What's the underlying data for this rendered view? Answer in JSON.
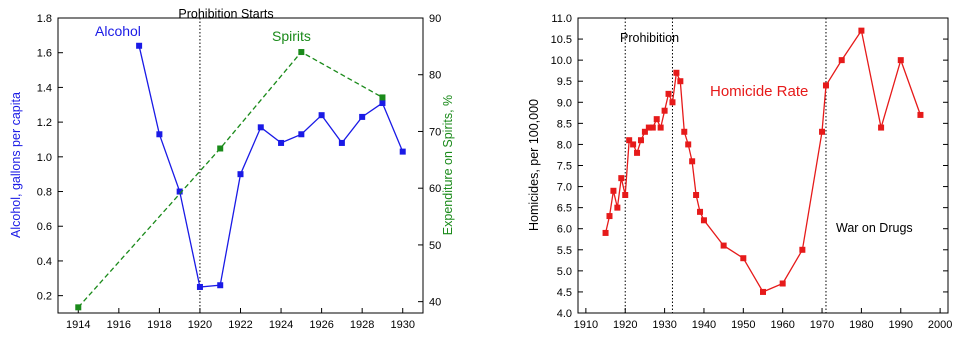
{
  "chart_data": [
    {
      "type": "line",
      "x_ticks": [
        "1914",
        "1916",
        "1918",
        "1920",
        "1922",
        "1924",
        "1926",
        "1928",
        "1930"
      ],
      "xlim": [
        1913,
        1931
      ],
      "series": [
        {
          "name": "Alcohol",
          "axis": "left",
          "color": "#1a1ae6",
          "dashed": false,
          "x": [
            1917,
            1918,
            1919,
            1920,
            1921,
            1922,
            1923,
            1924,
            1925,
            1926,
            1927,
            1928,
            1929,
            1930
          ],
          "y": [
            1.64,
            1.13,
            0.8,
            0.25,
            0.26,
            0.9,
            1.17,
            1.08,
            1.13,
            1.24,
            1.08,
            1.23,
            1.31,
            1.03
          ]
        },
        {
          "name": "Spirits",
          "axis": "right",
          "color": "#1a8a1a",
          "dashed": true,
          "x": [
            1914,
            1921,
            1925,
            1929
          ],
          "y": [
            39,
            67,
            84,
            76
          ]
        }
      ],
      "y_left": {
        "label": "Alcohol, gallons per capita",
        "lim": [
          0.1,
          1.8
        ],
        "ticks": [
          "0.2",
          "0.4",
          "0.6",
          "0.8",
          "1.0",
          "1.2",
          "1.4",
          "1.6",
          "1.8"
        ],
        "color": "#1a1ae6"
      },
      "y_right": {
        "label": "Expenditure on Spirits, %",
        "lim": [
          38,
          90
        ],
        "ticks": [
          "40",
          "50",
          "60",
          "70",
          "80",
          "90"
        ],
        "color": "#1a8a1a"
      },
      "annotations": [
        {
          "text": "Prohibition Starts",
          "at_x": 1920,
          "vline": true
        },
        {
          "text": "Alcohol",
          "color": "#1a1ae6"
        },
        {
          "text": "Spirits",
          "color": "#1a8a1a"
        }
      ],
      "grid": false
    },
    {
      "type": "line",
      "x_ticks": [
        "1910",
        "1920",
        "1930",
        "1940",
        "1950",
        "1960",
        "1970",
        "1980",
        "1990",
        "2000"
      ],
      "xlim": [
        1908,
        2002
      ],
      "series": [
        {
          "name": "Homicide Rate",
          "color": "#e61a1a",
          "dashed": false,
          "x": [
            1915,
            1916,
            1917,
            1918,
            1919,
            1920,
            1921,
            1922,
            1923,
            1924,
            1925,
            1926,
            1927,
            1928,
            1929,
            1930,
            1931,
            1932,
            1933,
            1934,
            1935,
            1936,
            1937,
            1938,
            1939,
            1940,
            1945,
            1950,
            1955,
            1960,
            1965,
            1970,
            1971,
            1975,
            1980,
            1985,
            1990,
            1995
          ],
          "y": [
            5.9,
            6.3,
            6.9,
            6.5,
            7.2,
            6.8,
            8.1,
            8.0,
            7.8,
            8.1,
            8.3,
            8.4,
            8.4,
            8.6,
            8.4,
            8.8,
            9.2,
            9.0,
            9.7,
            9.5,
            8.3,
            8.0,
            7.6,
            6.8,
            6.4,
            6.2,
            5.6,
            5.3,
            4.5,
            4.7,
            5.5,
            8.3,
            9.4,
            10.0,
            10.7,
            8.4,
            10.0,
            8.7
          ]
        }
      ],
      "y_axis": {
        "label": "Homicides, per 100,000",
        "lim": [
          4.0,
          11.0
        ],
        "ticks": [
          "4.0",
          "4.5",
          "5.0",
          "5.5",
          "6.0",
          "6.5",
          "7.0",
          "7.5",
          "8.0",
          "8.5",
          "9.0",
          "9.5",
          "10.0",
          "10.5",
          "11.0"
        ]
      },
      "annotations": [
        {
          "text": "Prohibition",
          "vlines": [
            1920,
            1932
          ]
        },
        {
          "text": "War on Drugs",
          "vlines": [
            1971
          ]
        },
        {
          "text": "Homicide Rate",
          "color": "#e61a1a"
        }
      ],
      "grid": false
    }
  ]
}
